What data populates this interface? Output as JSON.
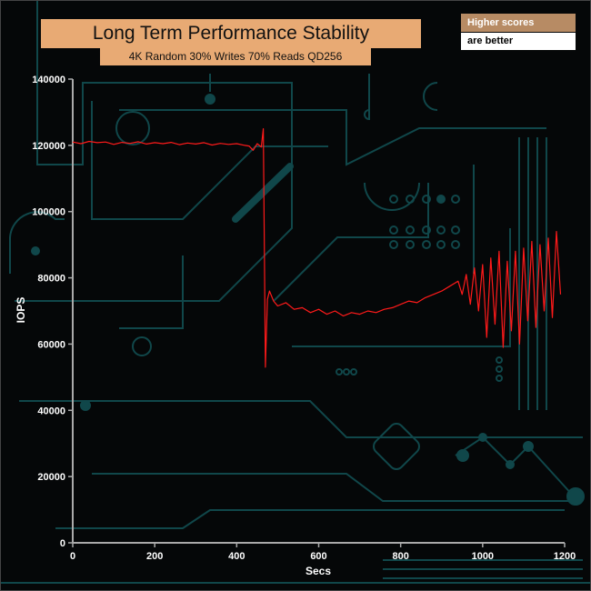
{
  "notes": {
    "line1": "Higher scores",
    "line2": "are better"
  },
  "colors": {
    "series": "#ff1a1a",
    "axis": "#aaaaaa",
    "title_box": "#e8aa74",
    "background": "#050708",
    "circuit": "#10474a"
  },
  "chart_data": {
    "type": "line",
    "title": "Long Term Performance Stability",
    "subtitle": "4K Random 30% Writes 70% Reads QD256",
    "xlabel": "Secs",
    "ylabel": "IOPS",
    "xlim": [
      0,
      1200
    ],
    "ylim": [
      0,
      140000
    ],
    "x_ticks": [
      0,
      200,
      400,
      600,
      800,
      1000,
      1200
    ],
    "y_ticks": [
      0,
      20000,
      40000,
      60000,
      80000,
      100000,
      120000,
      140000
    ],
    "x_tick_labels": [
      "0",
      "200",
      "400",
      "600",
      "800",
      "1000",
      "1200"
    ],
    "y_tick_labels": [
      "0",
      "20000",
      "40000",
      "60000",
      "80000",
      "100000",
      "120000",
      "140000"
    ],
    "grid": false,
    "series": [
      {
        "color": "#ff1a1a",
        "x": [
          0,
          20,
          40,
          60,
          80,
          100,
          120,
          140,
          160,
          180,
          200,
          220,
          240,
          260,
          280,
          300,
          320,
          340,
          360,
          380,
          400,
          420,
          430,
          440,
          450,
          460,
          465,
          470,
          475,
          480,
          490,
          500,
          520,
          540,
          560,
          580,
          600,
          620,
          640,
          660,
          680,
          700,
          720,
          740,
          760,
          780,
          800,
          820,
          840,
          860,
          880,
          900,
          920,
          940,
          950,
          960,
          970,
          980,
          990,
          1000,
          1010,
          1020,
          1030,
          1040,
          1050,
          1060,
          1070,
          1080,
          1090,
          1100,
          1110,
          1120,
          1130,
          1140,
          1150,
          1160,
          1170,
          1180,
          1190
        ],
        "values": [
          121000,
          120500,
          121200,
          120800,
          121000,
          120300,
          120900,
          120600,
          121100,
          120400,
          120800,
          120500,
          120900,
          120200,
          120700,
          120400,
          120800,
          120100,
          120600,
          120300,
          120500,
          120000,
          119800,
          118500,
          120500,
          119500,
          125000,
          53000,
          73500,
          76000,
          73000,
          71500,
          72500,
          70500,
          71000,
          69500,
          70500,
          69000,
          70000,
          68500,
          69500,
          69000,
          70000,
          69500,
          70500,
          71000,
          72000,
          73000,
          72500,
          74000,
          75000,
          76000,
          77500,
          79000,
          75000,
          81000,
          72000,
          83000,
          70000,
          84000,
          62000,
          86000,
          66000,
          88000,
          59000,
          85000,
          64000,
          88000,
          60000,
          89000,
          67000,
          91000,
          65000,
          90000,
          70000,
          92000,
          68000,
          94000,
          75000
        ]
      }
    ]
  }
}
